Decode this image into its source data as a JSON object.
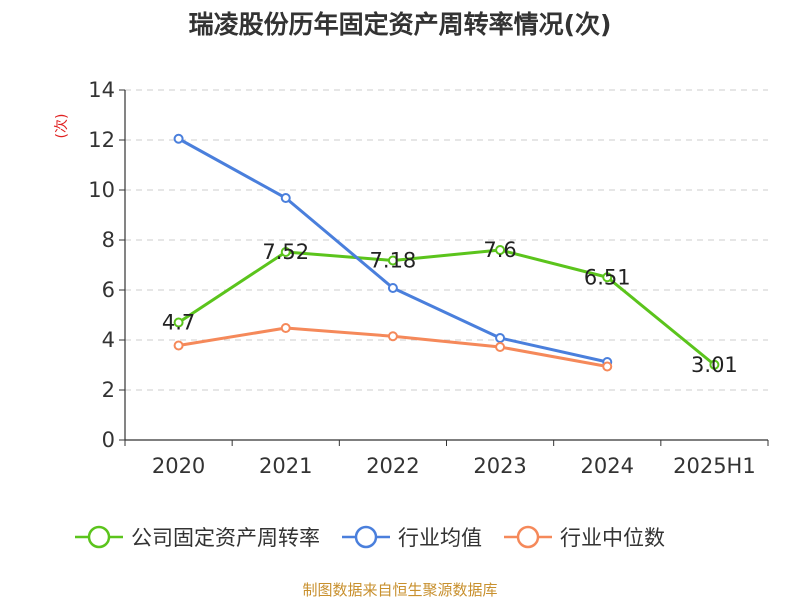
{
  "chart_data": {
    "type": "line",
    "title": "瑞凌股份历年固定资产周转率情况(次)",
    "unit_label": "(次)",
    "categories": [
      "2020",
      "2021",
      "2022",
      "2023",
      "2024",
      "2025H1"
    ],
    "ylim": [
      0,
      14
    ],
    "yticks": [
      0,
      2,
      4,
      6,
      8,
      10,
      12,
      14
    ],
    "grid": true,
    "legend_position": "bottom",
    "series": [
      {
        "name": "公司固定资产周转率",
        "color": "#5bc41c",
        "values": [
          4.7,
          7.52,
          7.18,
          7.6,
          6.51,
          3.01
        ],
        "labels": [
          "4.7",
          "7.52",
          "7.18",
          "7.6",
          "6.51",
          "3.01"
        ]
      },
      {
        "name": "行业均值",
        "color": "#4a7fdc",
        "values": [
          12.05,
          9.68,
          6.08,
          4.08,
          3.12,
          null
        ]
      },
      {
        "name": "行业中位数",
        "color": "#f5895a",
        "values": [
          3.78,
          4.48,
          4.15,
          3.72,
          2.94,
          null
        ]
      }
    ],
    "source": "制图数据来自恒生聚源数据库"
  }
}
